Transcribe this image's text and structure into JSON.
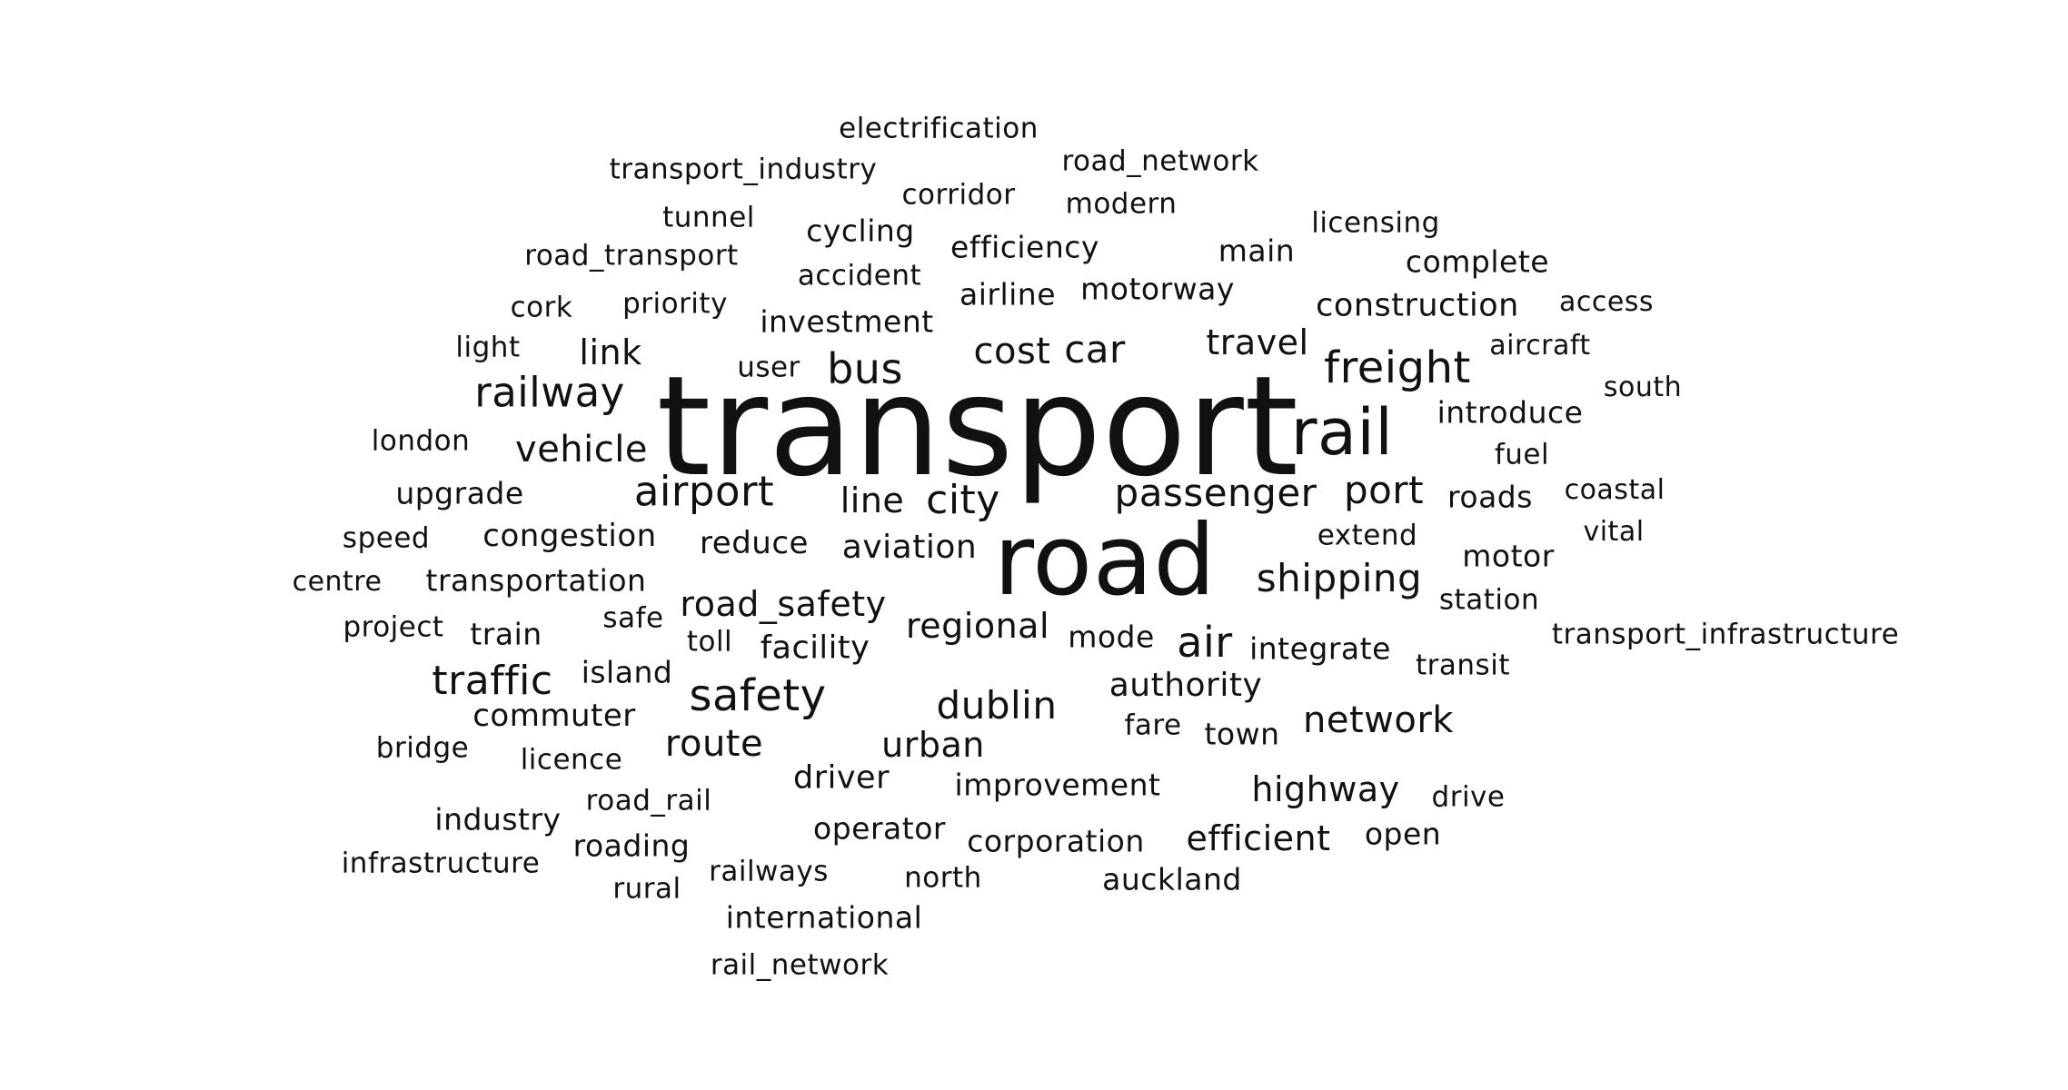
{
  "colors": {
    "background": "#ffffff",
    "text": "#111111"
  },
  "words": [
    "transport",
    "road",
    "rail",
    "freight",
    "railway",
    "airport",
    "passenger",
    "shipping",
    "safety",
    "bus",
    "cost",
    "car",
    "travel",
    "link",
    "vehicle",
    "line",
    "city",
    "port",
    "aviation",
    "reduce",
    "congestion",
    "transportation",
    "road_safety",
    "regional",
    "air",
    "traffic",
    "dublin",
    "authority",
    "network",
    "route",
    "urban",
    "highway",
    "efficient",
    "driver",
    "electrification",
    "transport_industry",
    "road_network",
    "corridor",
    "tunnel",
    "modern",
    "cycling",
    "licensing",
    "road_transport",
    "efficiency",
    "main",
    "complete",
    "accident",
    "airline",
    "motorway",
    "cork",
    "priority",
    "investment",
    "construction",
    "access",
    "light",
    "user",
    "aircraft",
    "south",
    "introduce",
    "london",
    "fuel",
    "upgrade",
    "roads",
    "coastal",
    "speed",
    "extend",
    "vital",
    "motor",
    "centre",
    "station",
    "project",
    "train",
    "safe",
    "mode",
    "transport_infrastructure",
    "toll",
    "facility",
    "integrate",
    "island",
    "transit",
    "commuter",
    "fare",
    "town",
    "bridge",
    "licence",
    "improvement",
    "industry",
    "road_rail",
    "drive",
    "operator",
    "open",
    "corporation",
    "infrastructure",
    "roading",
    "rural",
    "railways",
    "north",
    "auckland",
    "international",
    "rail_network"
  ]
}
